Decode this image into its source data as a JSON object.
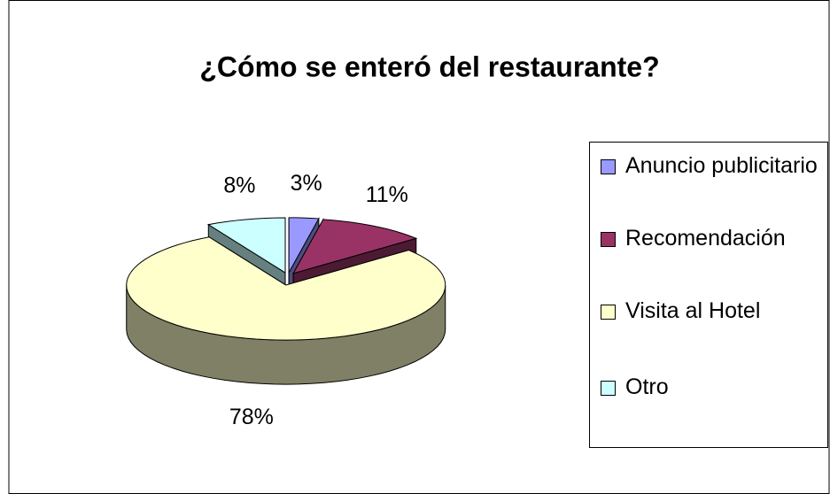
{
  "chart_data": {
    "type": "pie",
    "title": "¿Cómo se enteró del restaurante?",
    "categories": [
      "Anuncio publicitario",
      "Recomendación",
      "Visita al Hotel",
      "Otro"
    ],
    "values": [
      3,
      11,
      78,
      8
    ],
    "value_labels": [
      "3%",
      "11%",
      "78%",
      "8%"
    ],
    "colors": [
      "#9999ff",
      "#993366",
      "#ffffcc",
      "#ccffff"
    ],
    "legend": "right"
  }
}
